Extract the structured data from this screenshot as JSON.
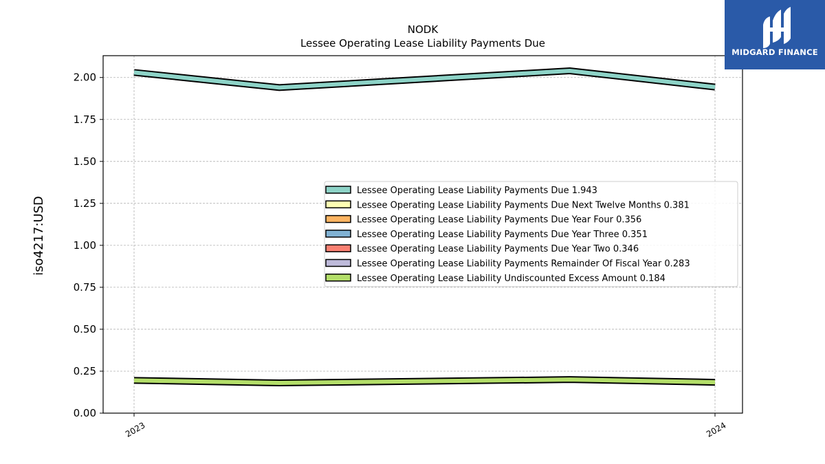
{
  "logo": {
    "text": "MIDGARD FINANCE",
    "background": "#2a5aa8"
  },
  "chart_data": {
    "type": "line",
    "title": "NODK",
    "subtitle": "Lessee Operating Lease Liability Payments Due",
    "ylabel": "iso4217:USD",
    "xlabel": "",
    "ylim": [
      0,
      2.13
    ],
    "yticks": [
      "0.00",
      "0.25",
      "0.50",
      "0.75",
      "1.00",
      "1.25",
      "1.50",
      "1.75",
      "2.00"
    ],
    "xticks": [
      "2023",
      "2024"
    ],
    "x": [
      "2023-01",
      "2023-04",
      "2023-10",
      "2024-01"
    ],
    "grid": true,
    "legend_position": "center-right",
    "series": [
      {
        "name": "Lessee Operating Lease Liability Payments Due",
        "latest": "1.943",
        "color": "#8dd3c7",
        "values": [
          2.03,
          1.94,
          2.04,
          1.943
        ]
      },
      {
        "name": "Lessee Operating Lease Liability Payments Due Next Twelve Months",
        "latest": "0.381",
        "color": "#ffffb3",
        "values": null
      },
      {
        "name": "Lessee Operating Lease Liability Payments Due Year Four",
        "latest": "0.356",
        "color": "#fdb462",
        "values": null
      },
      {
        "name": "Lessee Operating Lease Liability Payments Due Year Three",
        "latest": "0.351",
        "color": "#80b1d3",
        "values": null
      },
      {
        "name": "Lessee Operating Lease Liability Payments Due Year Two",
        "latest": "0.346",
        "color": "#fb8072",
        "values": null
      },
      {
        "name": "Lessee Operating Lease Liability Payments Remainder Of Fiscal Year",
        "latest": "0.283",
        "color": "#bebada",
        "values": null
      },
      {
        "name": "Lessee Operating Lease Liability Undiscounted Excess Amount",
        "latest": "0.184",
        "color": "#b3de69",
        "values": [
          0.195,
          0.18,
          0.2,
          0.184
        ]
      }
    ]
  }
}
